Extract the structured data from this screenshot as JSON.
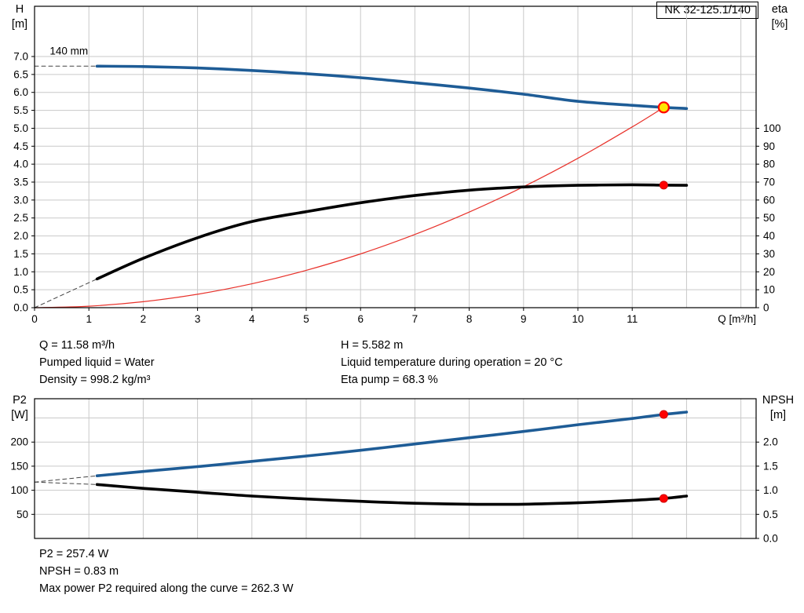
{
  "title_box": "NK 32-125.1/140",
  "colors": {
    "grid": "#c9c9c9",
    "frame": "#000000",
    "blue": "#1e5c96",
    "black": "#000000",
    "red": "#e8312a",
    "marker_red": "#ff0000",
    "marker_yellow": "#ffe600"
  },
  "axis_corner_labels": {
    "top_left": [
      "H",
      "[m]"
    ],
    "top_right": [
      "eta",
      "[%]"
    ],
    "bottom_left": [
      "P2",
      "[W]"
    ],
    "bottom_right": [
      "NPSH",
      "[m]"
    ]
  },
  "operating_point_info": {
    "col1": [
      "Q = 11.58 m³/h",
      "Pumped liquid = Water",
      "Density = 998.2 kg/m³"
    ],
    "col2": [
      "H = 5.582 m",
      "Liquid temperature during operation = 20 °C",
      "Eta pump = 68.3 %"
    ]
  },
  "bottom_info": [
    "P2 = 257.4 W",
    "NPSH = 0.83 m",
    "Max power P2 required along the curve = 262.3 W"
  ],
  "chart_data": [
    {
      "type": "line",
      "title": "NK 32-125.1/140",
      "x": {
        "min": 0,
        "max": 13.28,
        "label": "Q [m³/h]",
        "grid": [
          1,
          2,
          3,
          4,
          5,
          6,
          7,
          8,
          9,
          10,
          11,
          12,
          13
        ],
        "ticks": [
          [
            0,
            "0"
          ],
          [
            1,
            "1"
          ],
          [
            2,
            "2"
          ],
          [
            3,
            "3"
          ],
          [
            4,
            "4"
          ],
          [
            5,
            "5"
          ],
          [
            6,
            "6"
          ],
          [
            7,
            "7"
          ],
          [
            8,
            "8"
          ],
          [
            9,
            "9"
          ],
          [
            10,
            "10"
          ],
          [
            11,
            "11"
          ]
        ]
      },
      "y_left": {
        "min": 0,
        "max": 8.4,
        "name": "H [m]",
        "grid": [
          0.5,
          1,
          1.5,
          2,
          2.5,
          3,
          3.5,
          4,
          4.5,
          5,
          5.5,
          6,
          6.5,
          7
        ],
        "ticks": [
          [
            0,
            "0.0"
          ],
          [
            0.5,
            "0.5"
          ],
          [
            1,
            "1.0"
          ],
          [
            1.5,
            "1.5"
          ],
          [
            2,
            "2.0"
          ],
          [
            2.5,
            "2.5"
          ],
          [
            3,
            "3.0"
          ],
          [
            3.5,
            "3.5"
          ],
          [
            4,
            "4.0"
          ],
          [
            4.5,
            "4.5"
          ],
          [
            5,
            "5.0"
          ],
          [
            5.5,
            "5.5"
          ],
          [
            6,
            "6.0"
          ],
          [
            6.5,
            "6.5"
          ],
          [
            7,
            "7.0"
          ]
        ]
      },
      "y_right": {
        "min": 0,
        "max": 168,
        "name": "eta [%]",
        "ticks": [
          [
            0,
            "0"
          ],
          [
            10,
            "10"
          ],
          [
            20,
            "20"
          ],
          [
            30,
            "30"
          ],
          [
            40,
            "40"
          ],
          [
            50,
            "50"
          ],
          [
            60,
            "60"
          ],
          [
            70,
            "70"
          ],
          [
            80,
            "80"
          ],
          [
            90,
            "90"
          ],
          [
            100,
            "100"
          ]
        ]
      },
      "series": [
        {
          "name": "system-curve",
          "axis": "left",
          "color": "#e8312a",
          "width": 1.2,
          "points": [
            [
              0,
              0
            ],
            [
              1,
              0.042
            ],
            [
              2,
              0.167
            ],
            [
              3,
              0.375
            ],
            [
              4,
              0.666
            ],
            [
              5,
              1.041
            ],
            [
              6,
              1.499
            ],
            [
              7,
              2.04
            ],
            [
              8,
              2.665
            ],
            [
              9,
              3.372
            ],
            [
              10,
              4.163
            ],
            [
              11,
              5.037
            ],
            [
              11.58,
              5.582
            ]
          ]
        },
        {
          "name": "qh-curve-extension",
          "axis": "left",
          "color": "#444444",
          "width": 1,
          "dash": true,
          "points": [
            [
              0,
              6.73
            ],
            [
              1.15,
              6.73
            ]
          ]
        },
        {
          "name": "qh-curve",
          "axis": "left",
          "color": "#1e5c96",
          "width": 3.6,
          "points": [
            [
              1.15,
              6.73
            ],
            [
              2,
              6.72
            ],
            [
              3,
              6.68
            ],
            [
              4,
              6.61
            ],
            [
              5,
              6.52
            ],
            [
              6,
              6.41
            ],
            [
              7,
              6.27
            ],
            [
              8,
              6.12
            ],
            [
              9,
              5.95
            ],
            [
              10,
              5.75
            ],
            [
              11,
              5.64
            ],
            [
              11.58,
              5.582
            ],
            [
              12,
              5.55
            ]
          ]
        },
        {
          "name": "eta-curve-extension",
          "axis": "right",
          "color": "#444444",
          "width": 1,
          "dash": true,
          "points": [
            [
              0,
              0
            ],
            [
              1.15,
              16
            ]
          ]
        },
        {
          "name": "eta-curve",
          "axis": "right",
          "color": "#000000",
          "width": 3.6,
          "points": [
            [
              1.15,
              16
            ],
            [
              2,
              27.5
            ],
            [
              3,
              39
            ],
            [
              4,
              48
            ],
            [
              5,
              53.5
            ],
            [
              6,
              58.5
            ],
            [
              7,
              62.5
            ],
            [
              8,
              65.5
            ],
            [
              9,
              67.3
            ],
            [
              10,
              68.2
            ],
            [
              11,
              68.5
            ],
            [
              11.58,
              68.3
            ],
            [
              12,
              68.2
            ]
          ]
        }
      ],
      "markers": [
        {
          "name": "duty-point-qh",
          "q": 11.58,
          "v": 5.582,
          "axis": "left",
          "fill": "#ffe600",
          "stroke": "#ff0000",
          "r": 6.5,
          "sw": 2.2,
          "interactable": true
        },
        {
          "name": "duty-point-eta",
          "q": 11.58,
          "v": 68.3,
          "axis": "right",
          "fill": "#ff0000",
          "stroke": "#d00000",
          "r": 5,
          "sw": 1,
          "interactable": false
        }
      ],
      "annotations": [
        {
          "q": 0.28,
          "v": 7.05,
          "text": "140 mm"
        }
      ]
    },
    {
      "type": "line",
      "x": {
        "min": 0,
        "max": 13.28,
        "grid": [
          1,
          2,
          3,
          4,
          5,
          6,
          7,
          8,
          9,
          10,
          11,
          12,
          13
        ],
        "ticks": []
      },
      "y_left": {
        "min": 0,
        "max": 290,
        "name": "P2 [W]",
        "grid": [
          50,
          100,
          150,
          200,
          250
        ],
        "ticks": [
          [
            50,
            "50"
          ],
          [
            100,
            "100"
          ],
          [
            150,
            "150"
          ],
          [
            200,
            "200"
          ]
        ]
      },
      "y_right": {
        "min": 0,
        "max": 2.9,
        "name": "NPSH [m]",
        "ticks": [
          [
            0,
            "0.0"
          ],
          [
            0.5,
            "0.5"
          ],
          [
            1,
            "1.0"
          ],
          [
            1.5,
            "1.5"
          ],
          [
            2,
            "2.0"
          ]
        ]
      },
      "series": [
        {
          "name": "p2-curve-extension",
          "axis": "left",
          "color": "#444444",
          "width": 1,
          "dash": true,
          "points": [
            [
              0,
              117
            ],
            [
              1.15,
              130
            ]
          ]
        },
        {
          "name": "p2-curve",
          "axis": "left",
          "color": "#1e5c96",
          "width": 3.6,
          "points": [
            [
              1.15,
              130
            ],
            [
              2,
              139
            ],
            [
              3,
              149
            ],
            [
              4,
              160
            ],
            [
              5,
              171
            ],
            [
              6,
              183
            ],
            [
              7,
              196
            ],
            [
              8,
              209
            ],
            [
              9,
              222
            ],
            [
              10,
              236
            ],
            [
              11,
              249
            ],
            [
              11.58,
              257.4
            ],
            [
              12,
              262.3
            ]
          ]
        },
        {
          "name": "npsh-curve-extension",
          "axis": "right",
          "color": "#444444",
          "width": 1,
          "dash": true,
          "points": [
            [
              0,
              1.17
            ],
            [
              1.15,
              1.12
            ]
          ]
        },
        {
          "name": "npsh-curve",
          "axis": "right",
          "color": "#000000",
          "width": 3.6,
          "points": [
            [
              1.15,
              1.12
            ],
            [
              2,
              1.04
            ],
            [
              3,
              0.96
            ],
            [
              4,
              0.88
            ],
            [
              5,
              0.82
            ],
            [
              6,
              0.77
            ],
            [
              7,
              0.73
            ],
            [
              8,
              0.71
            ],
            [
              9,
              0.71
            ],
            [
              10,
              0.74
            ],
            [
              11,
              0.79
            ],
            [
              11.58,
              0.83
            ],
            [
              12,
              0.88
            ]
          ]
        }
      ],
      "markers": [
        {
          "name": "duty-point-p2",
          "q": 11.58,
          "v": 257.4,
          "axis": "left",
          "fill": "#ff0000",
          "stroke": "#d00000",
          "r": 5,
          "sw": 1,
          "interactable": false
        },
        {
          "name": "duty-point-npsh",
          "q": 11.58,
          "v": 0.83,
          "axis": "right",
          "fill": "#ff0000",
          "stroke": "#d00000",
          "r": 5,
          "sw": 1,
          "interactable": false
        }
      ],
      "annotations": []
    }
  ]
}
